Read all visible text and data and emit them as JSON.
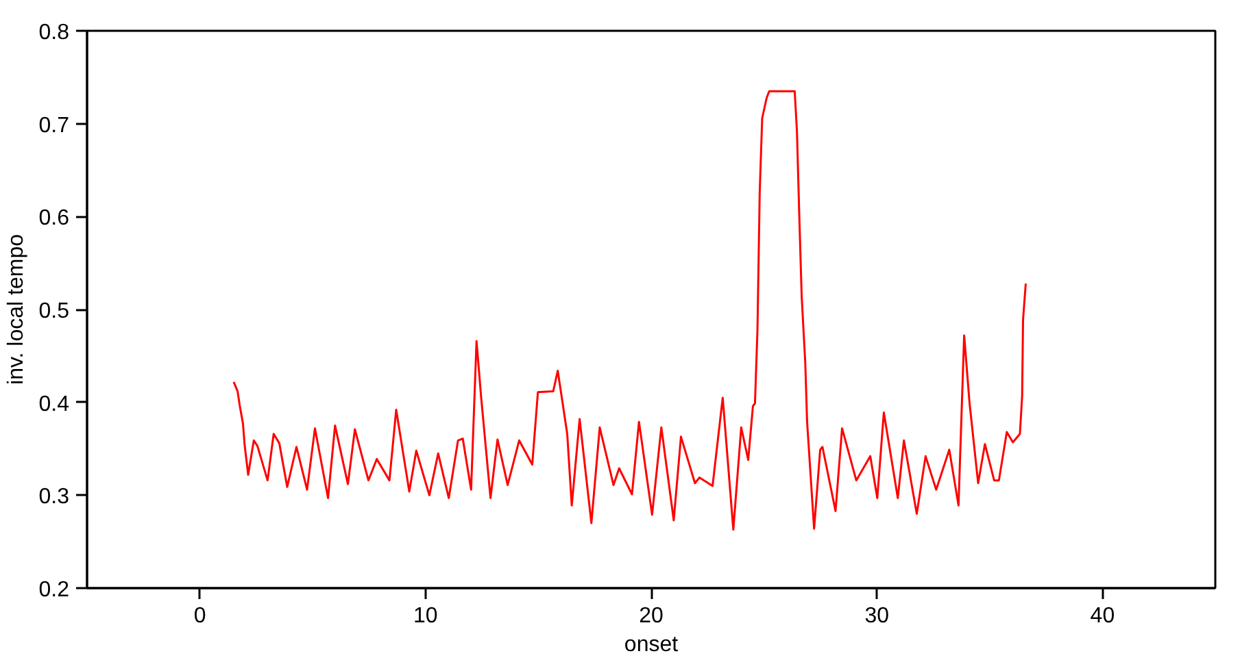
{
  "chart_data": {
    "type": "line",
    "xlabel": "onset",
    "ylabel": "inv. local tempo",
    "xlim": [
      -5,
      45
    ],
    "ylim": [
      0.2,
      0.8
    ],
    "xticks": [
      0,
      10,
      20,
      30,
      40
    ],
    "yticks": [
      0.2,
      0.3,
      0.4,
      0.5,
      0.6,
      0.7,
      0.8
    ],
    "grid": false,
    "marker": "none",
    "line_style": "solid",
    "series": [
      {
        "color": "#ff0000",
        "x": [
          1.5,
          1.67,
          1.77,
          1.91,
          1.98,
          2.14,
          2.39,
          2.55,
          3.0,
          3.27,
          3.52,
          3.87,
          4.28,
          4.75,
          5.1,
          5.68,
          5.99,
          6.56,
          6.87,
          7.47,
          7.84,
          8.4,
          8.7,
          9.28,
          9.59,
          10.17,
          10.56,
          11.03,
          11.44,
          11.65,
          12.02,
          12.26,
          12.47,
          12.88,
          13.19,
          13.64,
          14.15,
          14.73,
          14.98,
          15.66,
          15.86,
          16.28,
          16.48,
          16.83,
          17.35,
          17.72,
          18.33,
          18.58,
          19.15,
          19.46,
          20.04,
          20.45,
          21.0,
          21.32,
          21.94,
          22.14,
          22.72,
          23.17,
          23.64,
          23.99,
          24.3,
          24.51,
          24.6,
          24.71,
          24.81,
          24.92,
          25.12,
          25.23,
          26.36,
          26.46,
          26.56,
          26.67,
          26.83,
          26.91,
          27.22,
          27.49,
          27.59,
          28.17,
          28.46,
          29.09,
          29.71,
          30.02,
          30.31,
          30.93,
          31.2,
          31.77,
          32.16,
          32.63,
          33.21,
          33.62,
          33.87,
          34.11,
          34.49,
          34.79,
          35.2,
          35.41,
          35.76,
          36.03,
          36.34,
          36.44,
          36.48,
          36.6
        ],
        "values": [
          0.422,
          0.412,
          0.396,
          0.377,
          0.355,
          0.322,
          0.359,
          0.353,
          0.316,
          0.366,
          0.356,
          0.309,
          0.352,
          0.306,
          0.372,
          0.297,
          0.375,
          0.312,
          0.371,
          0.316,
          0.339,
          0.316,
          0.392,
          0.304,
          0.348,
          0.3,
          0.345,
          0.297,
          0.359,
          0.361,
          0.306,
          0.466,
          0.404,
          0.297,
          0.36,
          0.311,
          0.359,
          0.333,
          0.411,
          0.412,
          0.434,
          0.366,
          0.289,
          0.382,
          0.27,
          0.373,
          0.311,
          0.329,
          0.301,
          0.379,
          0.279,
          0.373,
          0.273,
          0.363,
          0.313,
          0.319,
          0.31,
          0.405,
          0.263,
          0.373,
          0.338,
          0.396,
          0.399,
          0.478,
          0.626,
          0.706,
          0.728,
          0.735,
          0.735,
          0.692,
          0.604,
          0.514,
          0.442,
          0.379,
          0.264,
          0.349,
          0.352,
          0.283,
          0.372,
          0.316,
          0.342,
          0.297,
          0.389,
          0.297,
          0.359,
          0.28,
          0.342,
          0.306,
          0.349,
          0.289,
          0.472,
          0.399,
          0.313,
          0.355,
          0.316,
          0.316,
          0.368,
          0.357,
          0.366,
          0.407,
          0.489,
          0.528
        ]
      }
    ]
  }
}
